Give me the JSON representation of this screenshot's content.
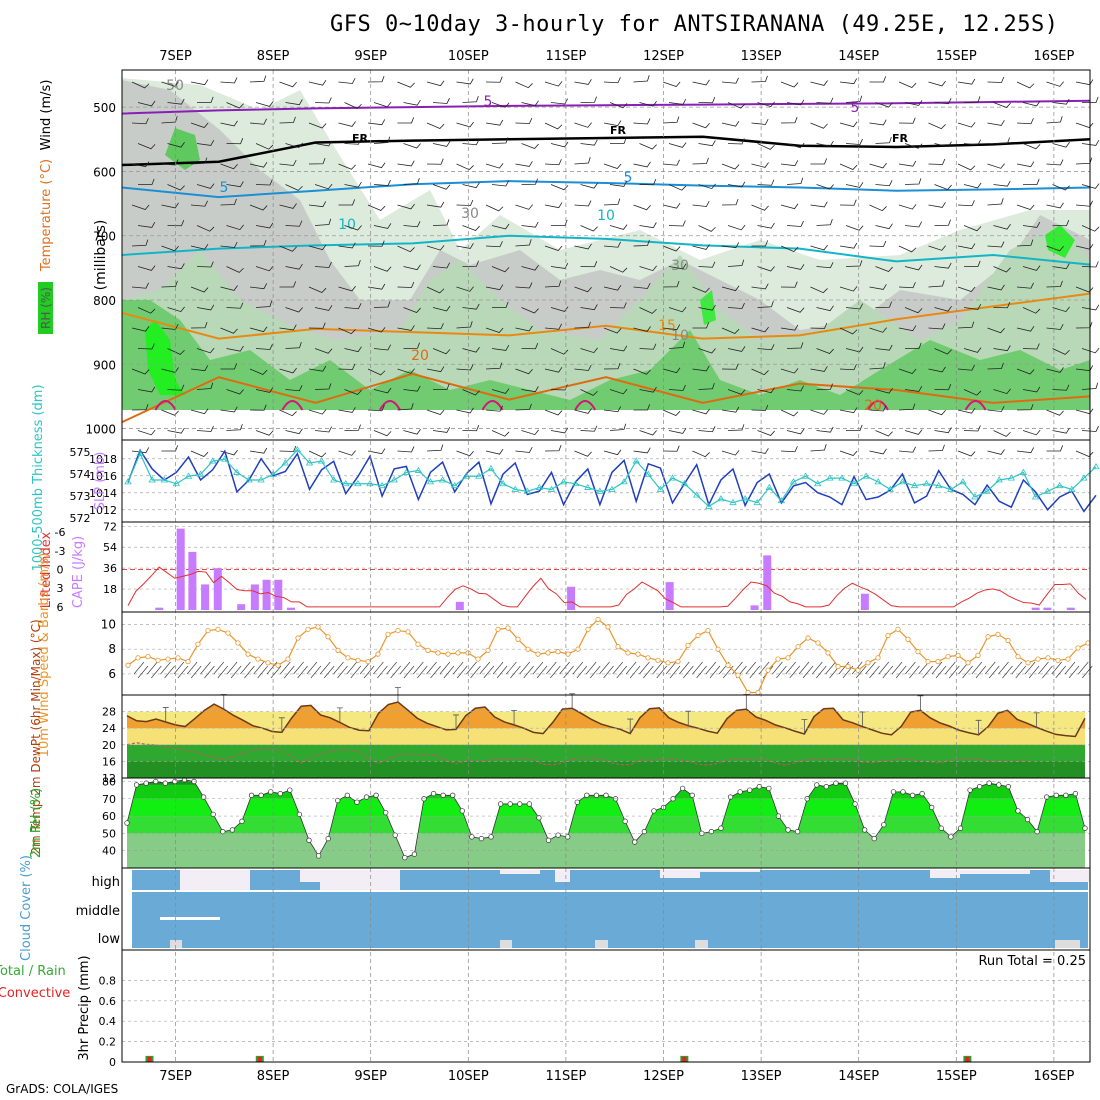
{
  "title": "GFS 0~10day 3-hourly for ANTSIRANANA (49.25E, 12.25S)",
  "footer": "GrADS: COLA/IGES",
  "colors": {
    "rh_light": "#dcebdc",
    "rh_mid": "#b8d8b8",
    "rh_gray": "#c8ccc8",
    "rh_green": "#5fc85f",
    "rh_bright": "#22ee22",
    "temp_purple": "#8a1fb5",
    "freezing": "#000000",
    "t5": "#1a8fd6",
    "t10": "#12b5c8",
    "t15": "#e88a12",
    "t20": "#e06a10",
    "t25": "#d6147a",
    "slp": "#1f3fbf",
    "thickness": "#2ec4c4",
    "cape": "#c77cff",
    "li": "#e03030",
    "wind": "#e8962a",
    "temp_fill": "#f0a030",
    "temp_mid": "#f6e880",
    "dew_fill": "#2ea82e",
    "cloud_blue": "#6aaad6",
    "cloud_white": "#f3eef6",
    "precip_green": "#2ea02e",
    "precip_red": "#e82020"
  },
  "chart_data": [
    {
      "type": "heatmap",
      "name": "upper_air",
      "xlabel_ticks": [
        "7SEP",
        "8SEP",
        "9SEP",
        "10SEP",
        "11SEP",
        "12SEP",
        "13SEP",
        "14SEP",
        "15SEP",
        "16SEP"
      ],
      "ylabel": "(millibars)",
      "side_labels": [
        "Wind (m/s)",
        "Temperature (°C)",
        "RH (%)"
      ],
      "y_ticks": [
        500,
        600,
        700,
        800,
        900,
        1000
      ],
      "ylim": [
        1000,
        450
      ],
      "contour_labels": [
        "5",
        "5",
        "FR",
        "FR",
        "FR",
        "5",
        "5",
        "10",
        "10",
        "15",
        "20",
        "20",
        "30",
        "30",
        "50",
        "10"
      ],
      "isotherms": [
        {
          "label": "-5",
          "p": [
            510,
            505,
            502,
            500,
            498,
            497,
            496,
            495,
            494,
            492,
            490
          ]
        },
        {
          "label": "FR",
          "p": [
            590,
            585,
            555,
            552,
            550,
            548,
            546,
            560,
            562,
            558,
            550
          ]
        },
        {
          "label": "5",
          "p": [
            625,
            640,
            630,
            620,
            615,
            618,
            622,
            625,
            630,
            628,
            625
          ]
        },
        {
          "label": "10",
          "p": [
            730,
            720,
            715,
            712,
            700,
            705,
            715,
            720,
            740,
            730,
            745
          ]
        },
        {
          "label": "15",
          "p": [
            820,
            860,
            845,
            850,
            855,
            840,
            860,
            855,
            830,
            810,
            790
          ]
        },
        {
          "label": "20",
          "p": [
            990,
            920,
            960,
            915,
            955,
            920,
            960,
            930,
            940,
            960,
            950
          ]
        }
      ]
    },
    {
      "type": "line",
      "name": "slp_thickness",
      "left_label": "1000-500mb Thickness (dm)",
      "right_label": "SLP (mb)",
      "left_ticks": [
        "575",
        "574",
        "573",
        "572"
      ],
      "right_ticks": [
        "1018",
        "1016",
        "1014",
        "1012"
      ],
      "series": [
        {
          "name": "SLP",
          "values": [
            1015.2,
            1019.0,
            1016.8,
            1015.5,
            1016.4,
            1018.2,
            1015.5,
            1016.7,
            1018.9,
            1014.1,
            1015.5,
            1018.0,
            1016.0,
            1016.5,
            1018.6,
            1014.4,
            1016.7,
            1017.7,
            1013.9,
            1015.9,
            1018.3,
            1013.6,
            1016.8,
            1017.1,
            1013.2,
            1016.4,
            1017.6,
            1014.1,
            1016.3,
            1017.6,
            1012.7,
            1016.2,
            1017.5,
            1013.8,
            1014.2,
            1016.4,
            1012.6,
            1015.3,
            1016.8,
            1012.6,
            1016.4,
            1017.8,
            1013.0,
            1017.4,
            1016.9,
            1012.8,
            1015.1,
            1017.3,
            1012.6,
            1015.5,
            1016.8,
            1012.5,
            1015.2,
            1016.2,
            1012.8,
            1014.8,
            1015.2,
            1014.0,
            1013.5,
            1012.6,
            1015.9,
            1013.2,
            1013.5,
            1014.3,
            1016.2,
            1012.8,
            1013.6,
            1016.6,
            1014.4,
            1013.8,
            1012.6,
            1014.9,
            1013.0,
            1012.3,
            1015.5,
            1014.1,
            1012.0,
            1013.5,
            1014.2,
            1011.8,
            1013.7
          ]
        },
        {
          "name": "Thickness",
          "values": [
            573.4,
            574.9,
            573.5,
            573.5,
            573.3,
            573.7,
            573.8,
            574.5,
            574.6,
            573.9,
            573.5,
            573.5,
            573.8,
            574.4,
            575.1,
            574.4,
            574.5,
            573.5,
            573.3,
            573.3,
            573.3,
            573.2,
            573.5,
            573.9,
            574.0,
            573.4,
            573.5,
            573.2,
            573.7,
            573.7,
            574.1,
            573.3,
            573.0,
            572.9,
            573.1,
            573.0,
            573.4,
            573.3,
            573.1,
            572.9,
            573.0,
            573.4,
            574.5,
            573.8,
            573.0,
            573.6,
            573.3,
            572.7,
            572.1,
            572.5,
            572.3,
            572.5,
            572.3,
            573.1,
            572.4,
            573.4,
            573.7,
            573.3,
            573.6,
            573.6,
            573.3,
            573.7,
            573.4,
            573.0,
            573.4,
            573.2,
            573.3,
            573.2,
            573.0,
            573.4,
            572.6,
            572.9,
            573.5,
            573.6,
            573.9,
            572.6,
            572.9,
            573.2,
            573.0,
            573.6,
            574.2
          ]
        }
      ]
    },
    {
      "type": "bar",
      "name": "cape_li",
      "left_label": "Lifted Index",
      "right_label": "CAPE (J/kg)",
      "li_ticks": [
        "-6",
        "-3",
        "0",
        "3",
        "6"
      ],
      "cape_ticks": [
        "72",
        "54",
        "36",
        "18"
      ],
      "cape_bars": [
        {
          "day": 0.12,
          "v": 2
        },
        {
          "day": 0.34,
          "v": 70
        },
        {
          "day": 0.46,
          "v": 50
        },
        {
          "day": 0.59,
          "v": 22
        },
        {
          "day": 0.72,
          "v": 36
        },
        {
          "day": 0.96,
          "v": 5
        },
        {
          "day": 1.1,
          "v": 22
        },
        {
          "day": 1.22,
          "v": 26
        },
        {
          "day": 1.34,
          "v": 26
        },
        {
          "day": 1.47,
          "v": 2
        },
        {
          "day": 3.2,
          "v": 7
        },
        {
          "day": 4.34,
          "v": 20
        },
        {
          "day": 5.35,
          "v": 24
        },
        {
          "day": 6.22,
          "v": 4
        },
        {
          "day": 6.35,
          "v": 47
        },
        {
          "day": 7.35,
          "v": 14
        },
        {
          "day": 9.1,
          "v": 2
        },
        {
          "day": 9.22,
          "v": 2
        },
        {
          "day": 9.46,
          "v": 2
        }
      ],
      "li_values": [
        5.8,
        3.5,
        2.3,
        1.0,
        -0.4,
        0.5,
        1.4,
        1.1,
        0.8,
        0.3,
        0.4,
        2.1,
        1.1,
        2.1,
        3.2,
        3.4,
        3.4,
        3.9,
        3.7,
        4.3,
        4.5,
        5.2,
        5.2,
        6,
        6,
        6,
        6,
        6,
        6,
        6,
        6,
        6,
        6,
        6,
        6,
        6,
        6,
        6,
        6,
        6,
        6,
        4.5,
        3.2,
        2.6,
        3.1,
        3.8,
        3.9,
        4.8,
        5.7,
        6,
        6,
        4.3,
        2.7,
        1.4,
        3.1,
        3.9,
        5.3,
        5.2,
        6,
        6,
        6,
        6,
        6,
        5.7,
        4.0,
        3.1,
        2.0,
        2.7,
        3.4,
        4.7,
        5.3,
        6,
        6,
        6,
        6,
        6,
        6,
        5.9,
        4.6,
        3.2,
        2.0,
        2.2,
        2.6,
        3.8,
        4.3,
        5.2,
        5.5,
        6,
        6,
        6,
        5.7,
        4.2,
        3.0,
        2.2,
        2.8,
        3.3,
        4.0,
        4.9,
        5.8,
        6,
        6,
        6,
        6,
        6,
        6,
        6,
        6,
        5.2,
        4.6,
        3.8,
        3.3,
        3.1,
        3.4,
        4.2,
        4.8,
        5.3,
        5.4,
        5.7,
        4.0,
        2.4,
        2.4,
        2.3,
        3.8,
        4.8
      ]
    },
    {
      "type": "line",
      "name": "wind10m",
      "left_label": "10m Wind Speed & Barbs (m/s)",
      "y_ticks": [
        "10",
        "8",
        "6"
      ],
      "ylim": [
        4.3,
        11
      ],
      "values": [
        6.7,
        7.3,
        7.4,
        7.1,
        7.2,
        7.3,
        7.0,
        8.4,
        9.5,
        9.6,
        9.3,
        8.5,
        7.6,
        7.2,
        6.9,
        6.7,
        7.2,
        8.9,
        9.6,
        9.8,
        9.0,
        7.9,
        7.3,
        7.1,
        7.0,
        7.6,
        9.2,
        9.5,
        9.4,
        8.4,
        7.9,
        7.7,
        7.6,
        7.7,
        7.7,
        7.2,
        7.9,
        9.6,
        9.7,
        8.8,
        8.0,
        7.6,
        7.7,
        7.8,
        7.6,
        8.0,
        9.6,
        10.4,
        9.8,
        8.2,
        7.7,
        7.6,
        7.3,
        7.1,
        6.9,
        7.0,
        8.3,
        9.1,
        9.5,
        8.0,
        6.7,
        5.9,
        4.5,
        4.5,
        6.3,
        7.2,
        7.3,
        8.2,
        8.9,
        8.5,
        7.7,
        6.6,
        6.6,
        6.3,
        6.9,
        7.3,
        9.1,
        9.6,
        8.8,
        7.8,
        7.0,
        7.0,
        7.4,
        7.5,
        6.9,
        7.5,
        9.0,
        9.2,
        8.7,
        7.4,
        6.9,
        7.2,
        7.3,
        7.1,
        7.2,
        8.1,
        8.5
      ]
    },
    {
      "type": "area",
      "name": "temp2m",
      "left_label": "2m Temp 2m DewPt (6hr Min/Max) (°C)",
      "y_ticks": [
        "28",
        "24",
        "20",
        "16",
        "12"
      ],
      "ylim": [
        12,
        32
      ],
      "series": [
        {
          "name": "Temp",
          "values": [
            27.0,
            25.8,
            25.6,
            26.2,
            25.5,
            24.8,
            24.4,
            26.3,
            28.3,
            29.8,
            28.6,
            27.1,
            25.9,
            24.6,
            24.0,
            23.2,
            23.0,
            26.4,
            29.3,
            29.5,
            27.2,
            26.5,
            25.4,
            24.2,
            23.5,
            23.4,
            27.6,
            29.7,
            30.3,
            28.4,
            26.4,
            25.2,
            24.4,
            23.6,
            23.7,
            27.0,
            28.8,
            29.1,
            26.7,
            25.5,
            24.8,
            24.0,
            23.0,
            22.7,
            25.4,
            28.6,
            28.8,
            27.5,
            26.1,
            25.0,
            24.3,
            23.7,
            22.7,
            26.5,
            28.7,
            28.9,
            26.5,
            25.4,
            24.6,
            24.0,
            23.3,
            22.8,
            26.3,
            28.3,
            28.6,
            26.7,
            25.9,
            24.8,
            24.1,
            23.3,
            22.6,
            26.8,
            28.7,
            28.8,
            26.0,
            25.3,
            24.4,
            23.6,
            22.8,
            22.4,
            24.4,
            27.9,
            28.3,
            26.5,
            25.3,
            24.5,
            23.5,
            22.9,
            22.4,
            24.4,
            27.6,
            28.3,
            26.1,
            25.2,
            24.2,
            23.3,
            22.5,
            22.2,
            22.0,
            26.4
          ]
        },
        {
          "name": "DewPt",
          "values": [
            20.0,
            20.5,
            20.1,
            20.0,
            19.5,
            19.0,
            18.7,
            18.3,
            17.6,
            16.8,
            16.6,
            17.1,
            17.9,
            18.6,
            18.9,
            19.0,
            18.6,
            17.2,
            15.6,
            16.9,
            17.9,
            18.4,
            18.8,
            18.7,
            18.3,
            16.7,
            15.5,
            16.8,
            17.4,
            17.8,
            17.6,
            17.6,
            17.3,
            16.3,
            15.4,
            16.1,
            16.2,
            16.0,
            16.7,
            16.7,
            16.5,
            16.6,
            16.5,
            15.3,
            15.2,
            15.6,
            16.6,
            16.8,
            16.9,
            16.6,
            15.7,
            15.2,
            15.2,
            16.3,
            16.3,
            16.4,
            16.6,
            16.4,
            16.1,
            15.3,
            15.1,
            15.5,
            16.4,
            16.5,
            16.6,
            16.7,
            16.4,
            15.6,
            15.1,
            15.6,
            16.4,
            16.5,
            16.5,
            16.5,
            16.7,
            16.4,
            15.8,
            15.7,
            16.0,
            16.3,
            16.7,
            16.5,
            16.0,
            15.9,
            15.6,
            16.3,
            16.6,
            16.5,
            16.5,
            16.0,
            16.0,
            15.9,
            16.0,
            16.2
          ]
        }
      ]
    },
    {
      "type": "area",
      "name": "rh2m",
      "left_label": "2m RH (%)",
      "y_ticks": [
        "80",
        "70",
        "60",
        "50",
        "40"
      ],
      "ylim": [
        30,
        82
      ],
      "values": [
        56,
        78,
        79,
        80,
        79,
        80,
        81,
        80,
        71,
        61,
        51,
        52,
        57,
        72,
        72,
        74,
        73,
        75,
        61,
        46,
        37,
        47,
        69,
        72,
        68,
        71,
        72,
        62,
        49,
        36,
        38,
        70,
        73,
        72,
        72,
        63,
        48,
        47,
        48,
        67,
        67,
        67,
        67,
        59,
        46,
        49,
        48,
        68,
        72,
        72,
        72,
        70,
        57,
        45,
        51,
        63,
        65,
        70,
        76,
        72,
        50,
        51,
        53,
        71,
        74,
        75,
        77,
        76,
        60,
        52,
        51,
        70,
        78,
        77,
        79,
        79,
        67,
        52,
        47,
        55,
        74,
        74,
        72,
        73,
        65,
        53,
        48,
        53,
        75,
        77,
        79,
        78,
        77,
        63,
        58,
        51,
        71,
        72,
        72,
        73,
        53
      ]
    },
    {
      "type": "area",
      "name": "cloud",
      "left_label": "Cloud Cover (%)",
      "row_labels": [
        "high",
        "middle",
        "low"
      ]
    },
    {
      "type": "bar",
      "name": "precip",
      "left_label_1": "Total / Rain",
      "left_label_2": "Convective",
      "axis_label": "3hr Precip (mm)",
      "y_ticks": [
        "0.8",
        "0.6",
        "0.4",
        "0.2",
        "0"
      ],
      "ylim": [
        0,
        1.0
      ],
      "run_total": "Run Total = 0.25",
      "bars": [
        {
          "day": 0.72,
          "v": 0.06
        },
        {
          "day": 1.85,
          "v": 0.06
        },
        {
          "day": 6.2,
          "v": 0.06
        },
        {
          "day": 9.1,
          "v": 0.06
        }
      ]
    }
  ]
}
